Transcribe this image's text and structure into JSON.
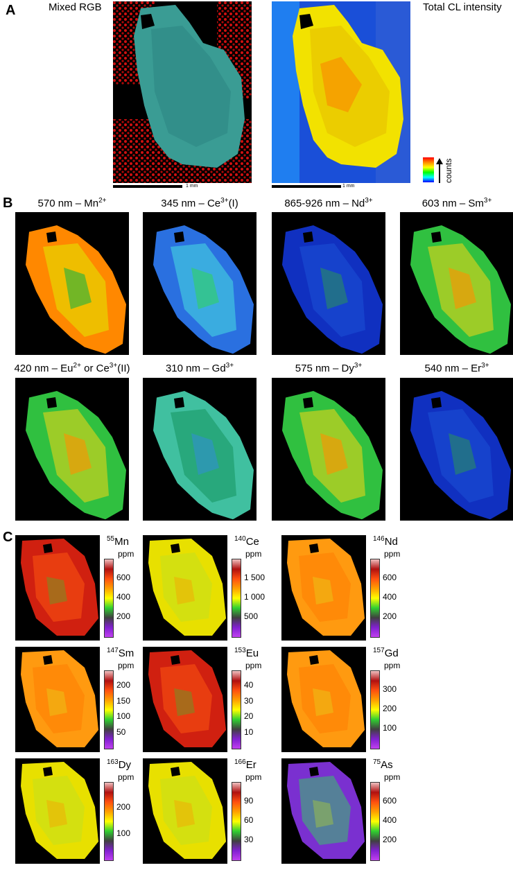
{
  "panel_a": {
    "letter": "A",
    "left_title": "Mixed RGB",
    "right_title": "Total CL intensity",
    "scalebar_left": "1 mm",
    "scalebar_right": "1 mm",
    "legend_label": "counts"
  },
  "panel_b": {
    "letter": "B",
    "maps": [
      {
        "wavelength": "570 nm – Mn",
        "ion_sup": "2+",
        "suffix": "",
        "palette": "warm"
      },
      {
        "wavelength": "345 nm – Ce",
        "ion_sup": "3+",
        "suffix": "(I)",
        "palette": "cool"
      },
      {
        "wavelength": "865-926 nm – Nd",
        "ion_sup": "3+",
        "suffix": "",
        "palette": "deepblue"
      },
      {
        "wavelength": "603 nm – Sm",
        "ion_sup": "3+",
        "suffix": "",
        "palette": "green"
      },
      {
        "wavelength": "420 nm – Eu",
        "ion_sup": "2+",
        "suffix": " or Ce",
        "suffix_sup": "3+",
        "suffix_end": "(II)",
        "palette": "green"
      },
      {
        "wavelength": "310 nm – Gd",
        "ion_sup": "3+",
        "suffix": "",
        "palette": "teal"
      },
      {
        "wavelength": "575 nm – Dy",
        "ion_sup": "3+",
        "suffix": "",
        "palette": "green"
      },
      {
        "wavelength": "540 nm – Er",
        "ion_sup": "3+",
        "suffix": "",
        "palette": "deepblue"
      }
    ]
  },
  "panel_c": {
    "letter": "C",
    "unit": "ppm",
    "maps": [
      {
        "mass": "55",
        "element": "Mn",
        "ticks": [
          "600",
          "400",
          "200"
        ],
        "palette": "red"
      },
      {
        "mass": "140",
        "element": "Ce",
        "ticks": [
          "1 500",
          "1 000",
          "500"
        ],
        "palette": "yellow"
      },
      {
        "mass": "146",
        "element": "Nd",
        "ticks": [
          "600",
          "400",
          "200"
        ],
        "palette": "orange"
      },
      {
        "mass": "147",
        "element": "Sm",
        "ticks": [
          "200",
          "150",
          "100",
          "50"
        ],
        "palette": "orange"
      },
      {
        "mass": "153",
        "element": "Eu",
        "ticks": [
          "40",
          "30",
          "20",
          "10"
        ],
        "palette": "red"
      },
      {
        "mass": "157",
        "element": "Gd",
        "ticks": [
          "300",
          "200",
          "100"
        ],
        "palette": "orange"
      },
      {
        "mass": "163",
        "element": "Dy",
        "ticks": [
          "200",
          "100"
        ],
        "palette": "yellow"
      },
      {
        "mass": "166",
        "element": "Er",
        "ticks": [
          "90",
          "60",
          "30"
        ],
        "palette": "yellow"
      },
      {
        "mass": "75",
        "element": "As",
        "ticks": [
          "600",
          "400",
          "200"
        ],
        "palette": "as"
      }
    ]
  }
}
